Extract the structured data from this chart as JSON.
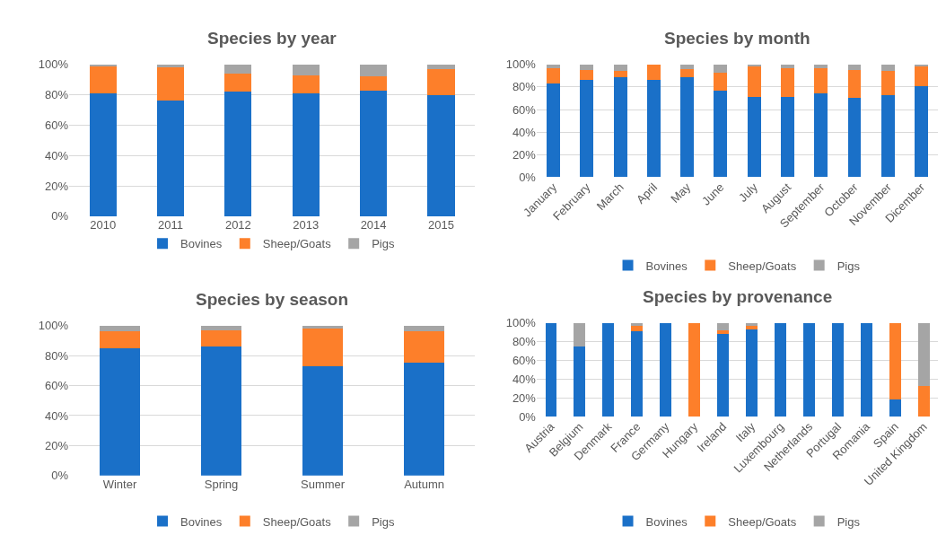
{
  "chart_data": [
    {
      "type": "bar",
      "title": "Species by year",
      "stacked": true,
      "categories": [
        "2010",
        "2011",
        "2012",
        "2013",
        "2014",
        "2015"
      ],
      "series": [
        {
          "name": "Bovines",
          "color": "#1a70c8",
          "values": [
            81,
            76,
            82,
            81,
            83,
            80
          ]
        },
        {
          "name": "Sheep/Goats",
          "color": "#fd7f2a",
          "values": [
            18,
            22,
            12,
            12,
            9,
            17
          ]
        },
        {
          "name": "Pigs",
          "color": "#a5a5a5",
          "values": [
            1,
            2,
            6,
            7,
            8,
            3
          ]
        }
      ],
      "ylim": [
        0,
        100
      ],
      "yticks": [
        {
          "value": 0,
          "label": "0%"
        },
        {
          "value": 20,
          "label": "20%"
        },
        {
          "value": 40,
          "label": "40%"
        },
        {
          "value": 60,
          "label": "60%"
        },
        {
          "value": 80,
          "label": "80%"
        },
        {
          "value": 100,
          "label": "100%"
        }
      ],
      "grid": "y",
      "legend": "bottom"
    },
    {
      "type": "bar",
      "title": "Species by month",
      "stacked": true,
      "categories": [
        "January",
        "February",
        "March",
        "April",
        "May",
        "June",
        "July",
        "August",
        "September",
        "October",
        "November",
        "Dicember"
      ],
      "series": [
        {
          "name": "Bovines",
          "color": "#1a70c8",
          "values": [
            83,
            86,
            89,
            86,
            89,
            77,
            71,
            71,
            74,
            70,
            73,
            81
          ]
        },
        {
          "name": "Sheep/Goats",
          "color": "#fd7f2a",
          "values": [
            14,
            9,
            5,
            14,
            7,
            16,
            28,
            26,
            23,
            25,
            21,
            18
          ]
        },
        {
          "name": "Pigs",
          "color": "#a5a5a5",
          "values": [
            3,
            5,
            6,
            0,
            4,
            7,
            1,
            3,
            3,
            5,
            6,
            1
          ]
        }
      ],
      "ylim": [
        0,
        100
      ],
      "yticks": [
        {
          "value": 0,
          "label": "0%"
        },
        {
          "value": 20,
          "label": "20%"
        },
        {
          "value": 40,
          "label": "40%"
        },
        {
          "value": 60,
          "label": "60%"
        },
        {
          "value": 80,
          "label": "80%"
        },
        {
          "value": 100,
          "label": "100%"
        }
      ],
      "grid": "y",
      "legend": "bottom"
    },
    {
      "type": "bar",
      "title": "Species by season",
      "stacked": true,
      "categories": [
        "Winter",
        "Spring",
        "Summer",
        "Autumn"
      ],
      "series": [
        {
          "name": "Bovines",
          "color": "#1a70c8",
          "values": [
            85,
            86,
            73,
            75
          ]
        },
        {
          "name": "Sheep/Goats",
          "color": "#fd7f2a",
          "values": [
            11,
            11,
            25,
            21
          ]
        },
        {
          "name": "Pigs",
          "color": "#a5a5a5",
          "values": [
            4,
            3,
            2,
            4
          ]
        }
      ],
      "ylim": [
        0,
        100
      ],
      "yticks": [
        {
          "value": 0,
          "label": "0%"
        },
        {
          "value": 20,
          "label": "20%"
        },
        {
          "value": 40,
          "label": "40%"
        },
        {
          "value": 60,
          "label": "60%"
        },
        {
          "value": 80,
          "label": "80%"
        },
        {
          "value": 100,
          "label": "100%"
        }
      ],
      "grid": "y",
      "legend": "bottom"
    },
    {
      "type": "bar",
      "title": "Species by provenance",
      "stacked": true,
      "categories": [
        "Austria",
        "Belgium",
        "Denmark",
        "France",
        "Germany",
        "Hungary",
        "Ireland",
        "Italy",
        "Luxembourg",
        "Netherlands",
        "Portugal",
        "Romania",
        "Spain",
        "United Kingdom"
      ],
      "series": [
        {
          "name": "Bovines",
          "color": "#1a70c8",
          "values": [
            100,
            75,
            100,
            91,
            100,
            0,
            88,
            93,
            100,
            100,
            100,
            100,
            18,
            0
          ]
        },
        {
          "name": "Sheep/Goats",
          "color": "#fd7f2a",
          "values": [
            0,
            0,
            0,
            6,
            0,
            100,
            4,
            4,
            0,
            0,
            0,
            0,
            82,
            33
          ]
        },
        {
          "name": "Pigs",
          "color": "#a5a5a5",
          "values": [
            0,
            25,
            0,
            3,
            0,
            0,
            8,
            3,
            0,
            0,
            0,
            0,
            0,
            67
          ]
        }
      ],
      "ylim": [
        0,
        100
      ],
      "yticks": [
        {
          "value": 0,
          "label": "0%"
        },
        {
          "value": 20,
          "label": "20%"
        },
        {
          "value": 40,
          "label": "40%"
        },
        {
          "value": 60,
          "label": "60%"
        },
        {
          "value": 80,
          "label": "80%"
        },
        {
          "value": 100,
          "label": "100%"
        }
      ],
      "grid": "y",
      "legend": "bottom"
    }
  ]
}
